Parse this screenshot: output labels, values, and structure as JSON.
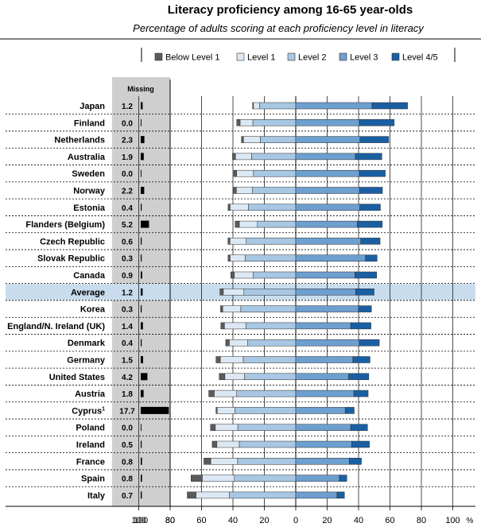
{
  "chart_data": {
    "type": "bar",
    "title": "Literacy proficiency among 16-65 year-olds",
    "subtitle": "Percentage of adults scoring at each proficiency level in literacy",
    "legend": {
      "position": "top-right",
      "items": [
        "Below Level 1",
        "Level 1",
        "Level 2",
        "Level 3",
        "Level 4/5"
      ]
    },
    "missing_header": "Missing",
    "colors": {
      "below1": "#5b5b5b",
      "level1": "#dce9f4",
      "level2": "#a7c7e3",
      "level3": "#6d9fcf",
      "level45": "#1b5fa3",
      "missing_bar": "#000000",
      "missing_bg": "#cfcfcf",
      "highlight": "#c8dcee"
    },
    "x_ticks": [
      "100",
      "80",
      "60",
      "40",
      "20",
      "0",
      "20",
      "40",
      "60",
      "80",
      "100"
    ],
    "x_unit": "%",
    "missing_ticks": [
      "100",
      "80"
    ],
    "series": [
      {
        "name": "Below Level 1",
        "values": [
          0.6,
          2.2,
          1.3,
          1.9,
          1.9,
          2.2,
          1.3,
          2.7,
          1.3,
          1.3,
          2.3,
          2.2,
          1.4,
          2.3,
          2.3,
          2.8,
          3.6,
          3.5,
          0.8,
          3.1,
          3.0,
          4.4,
          7.2,
          5.6
        ]
      },
      {
        "name": "Level 1",
        "values": [
          3.9,
          8.1,
          10.7,
          10.3,
          10.7,
          10.1,
          11.7,
          11.5,
          10.4,
          9.6,
          12.1,
          13.1,
          11.5,
          13.6,
          11.6,
          14.6,
          12.5,
          14.3,
          11.3,
          14.3,
          14.3,
          17.1,
          20.4,
          21.1
        ]
      },
      {
        "name": "Level 2",
        "values": [
          23.0,
          27.3,
          22.6,
          28.1,
          26.9,
          27.7,
          30.1,
          24.4,
          31.5,
          32.2,
          27.0,
          33.0,
          35.0,
          31.8,
          30.7,
          33.4,
          32.6,
          37.6,
          38.7,
          36.9,
          35.9,
          37.0,
          39.1,
          42.4
        ]
      },
      {
        "name": "Level 3",
        "values": [
          48.6,
          40.4,
          40.9,
          38.0,
          40.5,
          40.6,
          40.8,
          39.1,
          41.4,
          44.4,
          37.6,
          38.1,
          40.0,
          35.0,
          40.4,
          36.4,
          33.7,
          37.0,
          31.5,
          35.0,
          35.6,
          34.1,
          27.8,
          26.3
        ]
      },
      {
        "name": "Level 4/5",
        "values": [
          22.6,
          22.3,
          18.3,
          16.8,
          16.5,
          14.6,
          13.1,
          16.0,
          12.3,
          7.4,
          13.9,
          11.8,
          8.2,
          12.9,
          12.8,
          10.9,
          12.8,
          9.1,
          5.7,
          10.7,
          11.3,
          7.7,
          4.7,
          4.7
        ]
      }
    ],
    "rows": [
      {
        "country": "Japan",
        "missing": "1.2",
        "missing_value": 1.2,
        "highlight": false
      },
      {
        "country": "Finland",
        "missing": "0.0",
        "missing_value": 0.0,
        "highlight": false
      },
      {
        "country": "Netherlands",
        "missing": "2.3",
        "missing_value": 2.3,
        "highlight": false
      },
      {
        "country": "Australia",
        "missing": "1.9",
        "missing_value": 1.9,
        "highlight": false
      },
      {
        "country": "Sweden",
        "missing": "0.0",
        "missing_value": 0.0,
        "highlight": false
      },
      {
        "country": "Norway",
        "missing": "2.2",
        "missing_value": 2.2,
        "highlight": false
      },
      {
        "country": "Estonia",
        "missing": "0.4",
        "missing_value": 0.4,
        "highlight": false
      },
      {
        "country": "Flanders (Belgium)",
        "missing": "5.2",
        "missing_value": 5.2,
        "highlight": false
      },
      {
        "country": "Czech Republic",
        "missing": "0.6",
        "missing_value": 0.6,
        "highlight": false
      },
      {
        "country": "Slovak Republic",
        "missing": "0.3",
        "missing_value": 0.3,
        "highlight": false
      },
      {
        "country": "Canada",
        "missing": "0.9",
        "missing_value": 0.9,
        "highlight": false
      },
      {
        "country": "Average",
        "missing": "1.2",
        "missing_value": 1.2,
        "highlight": true
      },
      {
        "country": "Korea",
        "missing": "0.3",
        "missing_value": 0.3,
        "highlight": false
      },
      {
        "country": "England/N. Ireland (UK)",
        "missing": "1.4",
        "missing_value": 1.4,
        "highlight": false
      },
      {
        "country": "Denmark",
        "missing": "0.4",
        "missing_value": 0.4,
        "highlight": false
      },
      {
        "country": "Germany",
        "missing": "1.5",
        "missing_value": 1.5,
        "highlight": false
      },
      {
        "country": "United States",
        "missing": "4.2",
        "missing_value": 4.2,
        "highlight": false
      },
      {
        "country": "Austria",
        "missing": "1.8",
        "missing_value": 1.8,
        "highlight": false
      },
      {
        "country": "Cyprus",
        "footnote": "1",
        "missing": "17.7",
        "missing_value": 17.7,
        "highlight": false
      },
      {
        "country": "Poland",
        "missing": "0.0",
        "missing_value": 0.0,
        "highlight": false
      },
      {
        "country": "Ireland",
        "missing": "0.5",
        "missing_value": 0.5,
        "highlight": false
      },
      {
        "country": "France",
        "missing": "0.8",
        "missing_value": 0.8,
        "highlight": false
      },
      {
        "country": "Spain",
        "missing": "0.8",
        "missing_value": 0.8,
        "highlight": false
      },
      {
        "country": "Italy",
        "missing": "0.7",
        "missing_value": 0.7,
        "highlight": false
      }
    ]
  }
}
